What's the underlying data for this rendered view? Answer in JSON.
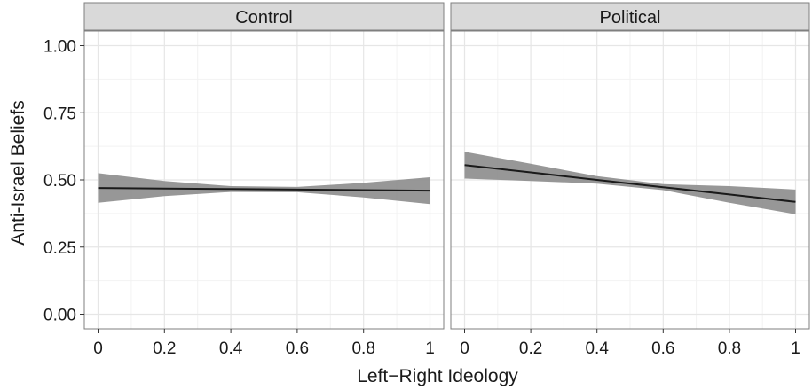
{
  "chart_data": {
    "type": "line",
    "xlabel": "Left−Right Ideology",
    "ylabel": "Anti-Israel Beliefs",
    "xlim": [
      0,
      1
    ],
    "ylim": [
      0,
      1
    ],
    "x_ticks": [
      0,
      0.2,
      0.4,
      0.6,
      0.8,
      1
    ],
    "x_tick_labels": [
      "0",
      "0.2",
      "0.4",
      "0.6",
      "0.8",
      "1"
    ],
    "y_ticks": [
      0,
      0.25,
      0.5,
      0.75,
      1
    ],
    "y_tick_labels": [
      "0.00",
      "0.25",
      "0.50",
      "0.75",
      "1.00"
    ],
    "grid": true,
    "colors": {
      "line": "#1a1a1a",
      "ribbon": "#8c8c8c",
      "strip": "#d9d9d9",
      "grid_major": "#e6e6e6",
      "grid_minor": "#f2f2f2",
      "border": "#7f7f7f"
    },
    "panels": [
      {
        "title": "Control",
        "x": [
          0,
          0.2,
          0.4,
          0.6,
          0.8,
          1
        ],
        "fit": [
          0.47,
          0.468,
          0.466,
          0.464,
          0.462,
          0.46
        ],
        "lower": [
          0.415,
          0.44,
          0.455,
          0.454,
          0.435,
          0.41
        ],
        "upper": [
          0.525,
          0.496,
          0.477,
          0.474,
          0.489,
          0.51
        ]
      },
      {
        "title": "Political",
        "x": [
          0,
          0.2,
          0.4,
          0.6,
          0.8,
          1
        ],
        "fit": [
          0.555,
          0.528,
          0.5,
          0.473,
          0.446,
          0.418
        ],
        "lower": [
          0.505,
          0.496,
          0.486,
          0.462,
          0.415,
          0.372
        ],
        "upper": [
          0.605,
          0.56,
          0.514,
          0.484,
          0.477,
          0.464
        ]
      }
    ]
  }
}
